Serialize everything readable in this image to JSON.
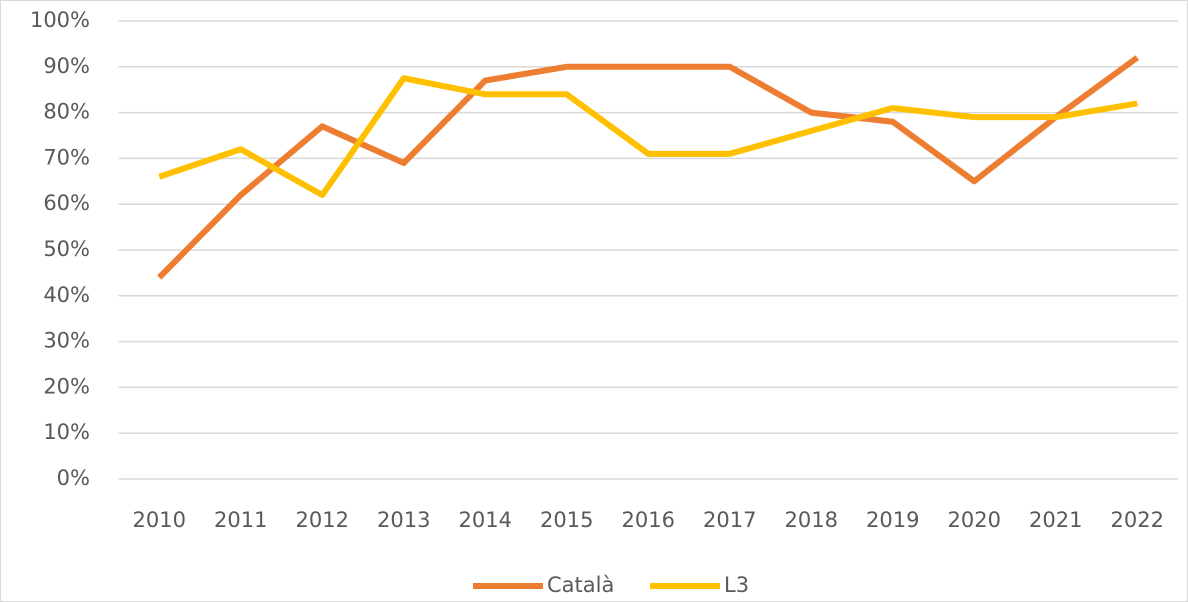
{
  "chart_data": {
    "type": "line",
    "categories": [
      "2010",
      "2011",
      "2012",
      "2013",
      "2014",
      "2015",
      "2016",
      "2017",
      "2018",
      "2019",
      "2020",
      "2021",
      "2022"
    ],
    "series": [
      {
        "name": "Català",
        "color": "#ed7d31",
        "values": [
          44,
          62,
          77,
          69,
          87,
          90,
          90,
          90,
          80,
          78,
          65,
          79,
          92
        ]
      },
      {
        "name": "L3",
        "color": "#ffc000",
        "values": [
          66,
          72,
          62,
          87.5,
          84,
          84,
          71,
          71,
          76,
          81,
          79,
          79,
          82
        ]
      }
    ],
    "ylim": [
      0,
      100
    ],
    "yticks": [
      {
        "value": 0,
        "label": "0%"
      },
      {
        "value": 10,
        "label": "10%"
      },
      {
        "value": 20,
        "label": "20%"
      },
      {
        "value": 30,
        "label": "30%"
      },
      {
        "value": 40,
        "label": "40%"
      },
      {
        "value": 50,
        "label": "50%"
      },
      {
        "value": 60,
        "label": "60%"
      },
      {
        "value": 70,
        "label": "70%"
      },
      {
        "value": 80,
        "label": "80%"
      },
      {
        "value": 90,
        "label": "90%"
      },
      {
        "value": 100,
        "label": "100%"
      }
    ],
    "grid": true,
    "legend": "bottom"
  }
}
